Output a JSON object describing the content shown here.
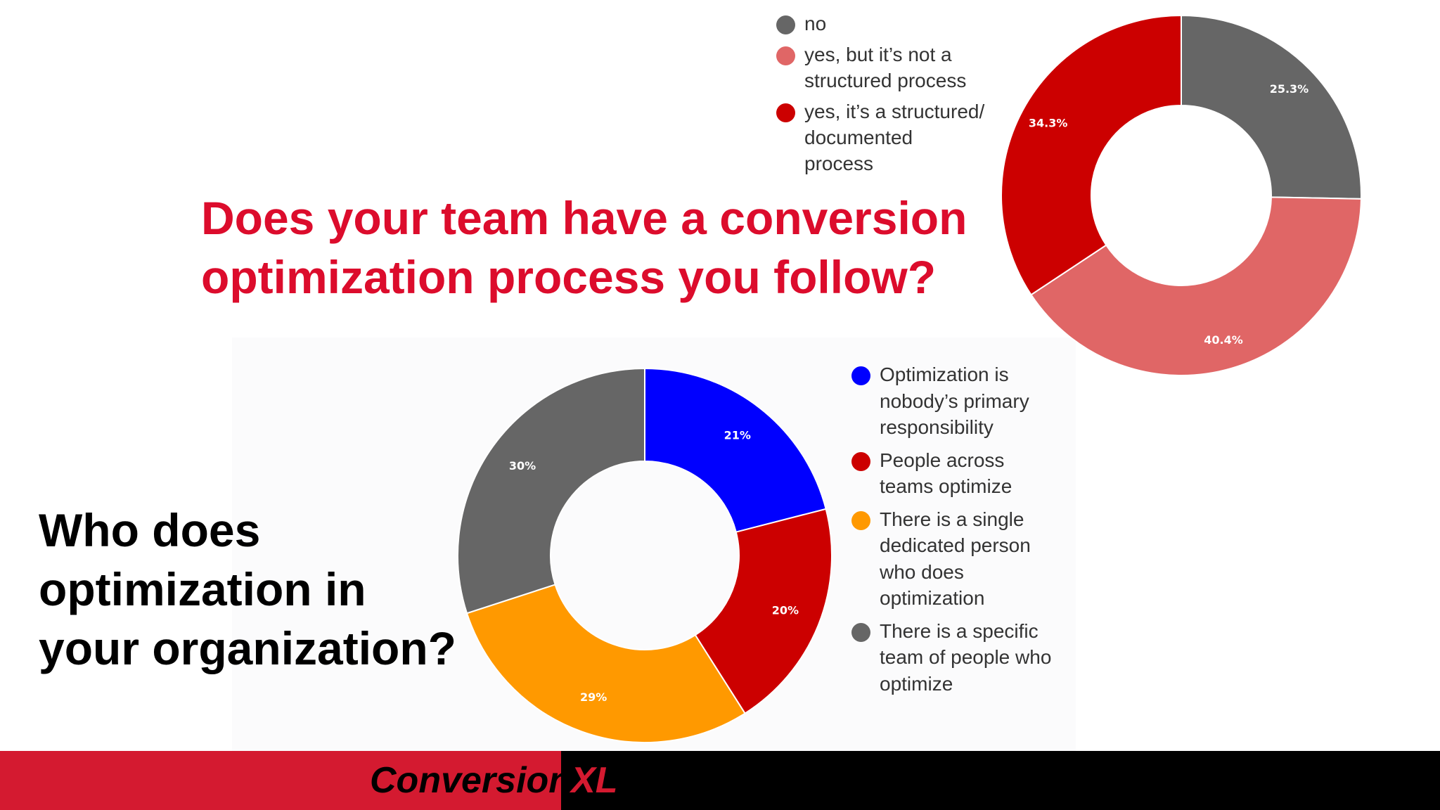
{
  "chart_data": [
    {
      "type": "pie",
      "donut": true,
      "title": "Does your team have a conversion optimization process you follow?",
      "legend_position": "left",
      "categories": [
        "no",
        "yes, but it’s not a structured process",
        "yes, it’s a structured/ documented process"
      ],
      "legend_lines": [
        [
          "no"
        ],
        [
          "yes, but it’s not a",
          "structured process"
        ],
        [
          "yes, it’s a structured/",
          "documented",
          "process"
        ]
      ],
      "values": [
        25.3,
        40.4,
        34.3
      ],
      "labels": [
        "25.3%",
        "40.4%",
        "34.3%"
      ],
      "colors": [
        "#666666",
        "#e06666",
        "#cc0000"
      ]
    },
    {
      "type": "pie",
      "donut": true,
      "title": "Who does optimization in your organization?",
      "legend_position": "right",
      "categories": [
        "Optimization is nobody’s primary responsibility",
        "People across teams optimize",
        "There is a single dedicated person who does optimization",
        "There is a specific team of people who optimize"
      ],
      "legend_lines": [
        [
          "Optimization is",
          "nobody’s primary",
          "responsibility"
        ],
        [
          "People across",
          "teams optimize"
        ],
        [
          "There is a single",
          "dedicated person",
          "who does",
          "optimization"
        ],
        [
          "There is a specific",
          "team of people who",
          "optimize"
        ]
      ],
      "values": [
        21,
        20,
        29,
        30
      ],
      "labels": [
        "21%",
        "20%",
        "29%",
        "30%"
      ],
      "colors": [
        "#0000ff",
        "#cc0000",
        "#ff9900",
        "#666666"
      ]
    }
  ],
  "question_top": {
    "lines": [
      "Does your team have a conversion",
      "optimization process you follow?"
    ],
    "color": "#dc0c2c"
  },
  "question_bottom": {
    "lines": [
      "Who does",
      "optimization in",
      "your organization?"
    ],
    "color": "#000000"
  },
  "footer": {
    "logo_part1": "Conversion",
    "logo_part2": "XL",
    "colors": {
      "left_band": "#d41a30",
      "right_band": "#000000"
    }
  }
}
